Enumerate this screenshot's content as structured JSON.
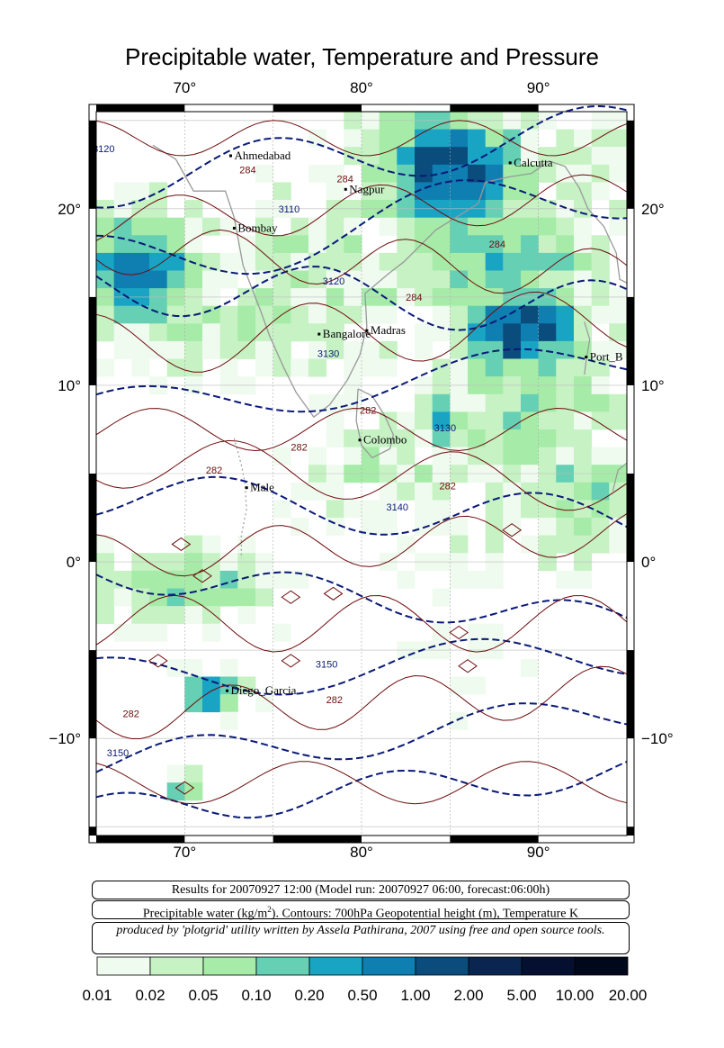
{
  "title": "Precipitable water, Temperature and Pressure",
  "map": {
    "lon_range": [
      65,
      95
    ],
    "lat_range": [
      -15.5,
      25.5
    ],
    "x_ticks": [
      "70°",
      "80°",
      "90°"
    ],
    "y_ticks": [
      "20°",
      "10°",
      "0°",
      "−10°"
    ],
    "cities": [
      {
        "name": "Ahmedabad",
        "lon": 72.6,
        "lat": 23.0
      },
      {
        "name": "Nagpur",
        "lon": 79.1,
        "lat": 21.1
      },
      {
        "name": "Calcutta",
        "lon": 88.4,
        "lat": 22.6
      },
      {
        "name": "Bombay",
        "lon": 72.8,
        "lat": 18.9
      },
      {
        "name": "Madras",
        "lon": 80.3,
        "lat": 13.1
      },
      {
        "name": "Bangalore",
        "lon": 77.6,
        "lat": 12.9
      },
      {
        "name": "Port_Blair",
        "lon": 92.7,
        "lat": 11.6
      },
      {
        "name": "Colombo",
        "lon": 79.9,
        "lat": 6.9
      },
      {
        "name": "Male",
        "lon": 73.5,
        "lat": 4.2
      },
      {
        "name": "Diego_Garcia",
        "lon": 72.4,
        "lat": -7.3
      }
    ],
    "contour_labels": [
      {
        "text": "3120",
        "lon": 64.8,
        "lat": 23.2
      },
      {
        "text": "284",
        "lon": 73.1,
        "lat": 22.0
      },
      {
        "text": "284",
        "lon": 78.6,
        "lat": 21.5
      },
      {
        "text": "3110",
        "lon": 75.3,
        "lat": 19.8
      },
      {
        "text": "284",
        "lon": 87.2,
        "lat": 17.8
      },
      {
        "text": "3120",
        "lon": 77.8,
        "lat": 15.7
      },
      {
        "text": "284",
        "lon": 82.5,
        "lat": 14.8
      },
      {
        "text": "3130",
        "lon": 77.5,
        "lat": 11.6
      },
      {
        "text": "282",
        "lon": 79.9,
        "lat": 8.4
      },
      {
        "text": "3130",
        "lon": 84.1,
        "lat": 7.4
      },
      {
        "text": "282",
        "lon": 76.0,
        "lat": 6.3
      },
      {
        "text": "282",
        "lon": 71.2,
        "lat": 5.0
      },
      {
        "text": "282",
        "lon": 84.4,
        "lat": 4.1
      },
      {
        "text": "3140",
        "lon": 81.4,
        "lat": 2.9
      },
      {
        "text": "3150",
        "lon": 77.4,
        "lat": -6.0
      },
      {
        "text": "282",
        "lon": 78.0,
        "lat": -8.0
      },
      {
        "text": "282",
        "lon": 66.5,
        "lat": -8.8
      },
      {
        "text": "3150",
        "lon": 65.6,
        "lat": -11.0
      }
    ]
  },
  "info": {
    "line1": "Results for 20070927 12:00 (Model run: 20070927 06:00, forecast:06:00h)",
    "line2_a": "Precipitable water (kg/m",
    "line2_sup": "2",
    "line2_b": ").  Contours: 700hPa Geopotential height (m), Temperature K",
    "line3": "produced by 'plotgrid' utility written by Assela Pathirana, 2007 using free and open source tools."
  },
  "colorbar": {
    "labels": [
      "0.01",
      "0.02",
      "0.05",
      "0.10",
      "0.20",
      "0.50",
      "1.00",
      "2.00",
      "5.00",
      "10.00",
      "20.00"
    ],
    "colors": [
      "#f0fbf0",
      "#c6f2c4",
      "#a6eca8",
      "#66d0b4",
      "#1aa4c4",
      "#0e7fb0",
      "#0a4d7d",
      "#0a2650",
      "#050f2f",
      "#02081c"
    ]
  },
  "colors": {
    "contour_height": "#0a1a78",
    "contour_temp": "#6e0c0c",
    "coast": "#999999"
  }
}
